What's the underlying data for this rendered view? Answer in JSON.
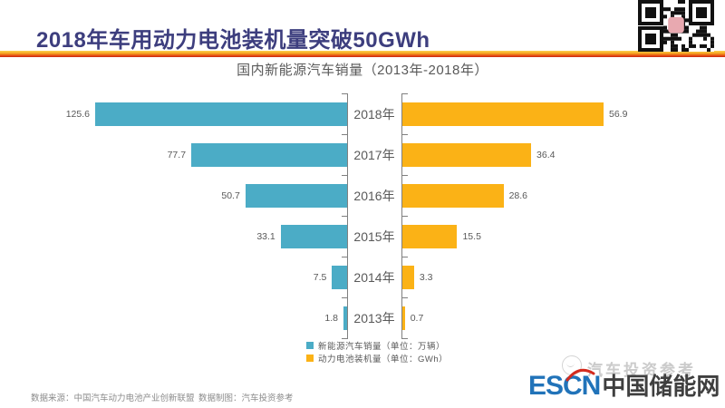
{
  "page": {
    "title": "2018年车用动力电池装机量突破50GWh"
  },
  "chart_data": {
    "type": "bar",
    "orientation": "horizontal-tornado",
    "title": "国内新能源汽车销量（2013年-2018年）",
    "categories": [
      "2018年",
      "2017年",
      "2016年",
      "2015年",
      "2014年",
      "2013年"
    ],
    "series": [
      {
        "name": "新能源汽车销量（单位：万辆）",
        "side": "left",
        "color": "#4BACC6",
        "values": [
          125.6,
          77.7,
          50.7,
          33.1,
          7.5,
          1.8
        ],
        "axis_range": [
          0,
          130
        ]
      },
      {
        "name": "动力电池装机量（单位：GWh）",
        "side": "right",
        "color": "#FBB216",
        "values": [
          56.9,
          36.4,
          28.6,
          15.5,
          3.3,
          0.7
        ],
        "axis_range": [
          0,
          65
        ]
      }
    ],
    "legend_position": "bottom-center",
    "grid": false
  },
  "footer": {
    "source": "数据来源：中国汽车动力电池产业创新联盟",
    "credit": "数据制图：汽车投资参考"
  },
  "branding": {
    "watermark": "汽车投资参考",
    "logo_en": "ESCN",
    "logo_cn": "中国储能网"
  },
  "colors": {
    "title": "#3D3E7E",
    "bar_left": "#4BACC6",
    "bar_right": "#FBB216",
    "axis": "#808080",
    "text": "#595959",
    "footer_text": "#8C8C8C",
    "logo_blue": "#2173B9",
    "logo_dark": "#3F3F3F",
    "band_top": "#FCD24F",
    "band_bottom": "#C62A10"
  }
}
